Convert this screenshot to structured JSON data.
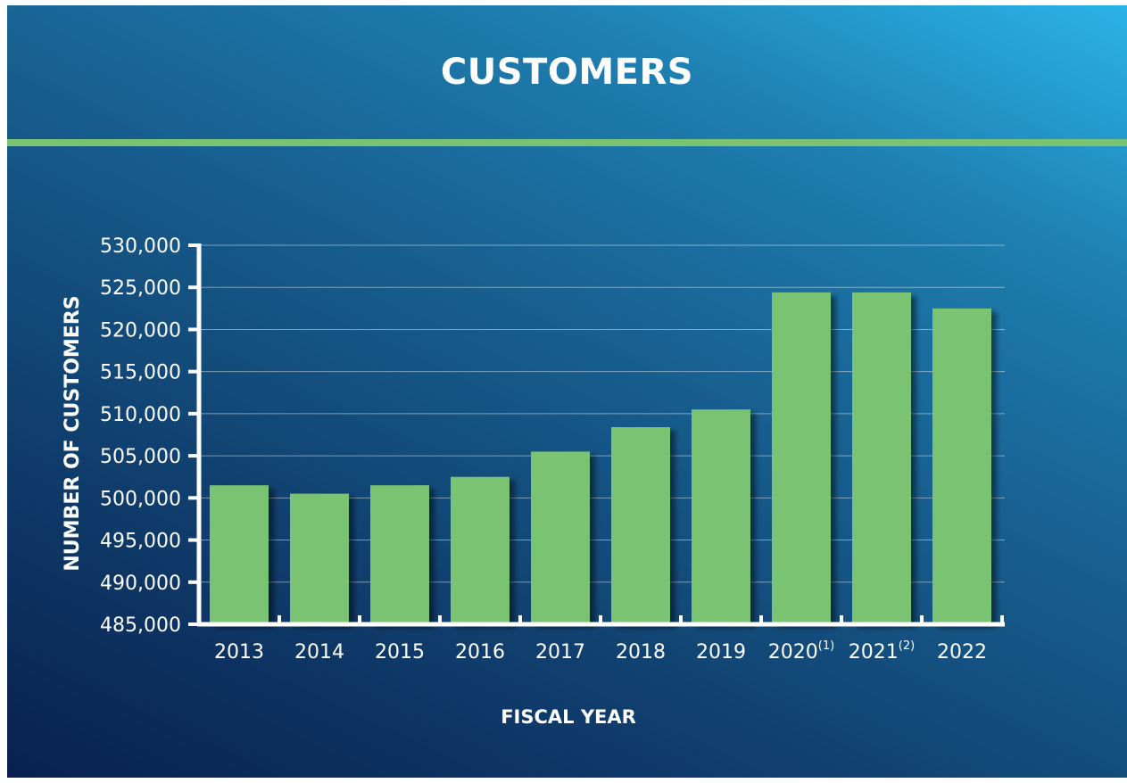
{
  "chart_data": {
    "type": "bar",
    "title": "CUSTOMERS",
    "xlabel": "FISCAL YEAR",
    "ylabel": "NUMBER OF CUSTOMERS",
    "categories": [
      "2013",
      "2014",
      "2015",
      "2016",
      "2017",
      "2018",
      "2019",
      "2020",
      "2021",
      "2022"
    ],
    "category_notes": [
      "",
      "",
      "",
      "",
      "",
      "",
      "",
      "(1)",
      "(2)",
      ""
    ],
    "values": [
      501500,
      500500,
      501500,
      502500,
      505500,
      508400,
      510500,
      524400,
      524400,
      522500
    ],
    "ylim": [
      485000,
      530000
    ],
    "yticks": [
      485000,
      490000,
      495000,
      500000,
      505000,
      510000,
      515000,
      520000,
      525000,
      530000
    ],
    "ytick_labels": [
      "485,000",
      "490,000",
      "495,000",
      "500,000",
      "505,000",
      "510,000",
      "515,000",
      "520,000",
      "525,000",
      "530,000"
    ],
    "grid": true,
    "colors": {
      "bar": "#79c373",
      "divider": "#79c373",
      "text": "#ffffff"
    }
  }
}
